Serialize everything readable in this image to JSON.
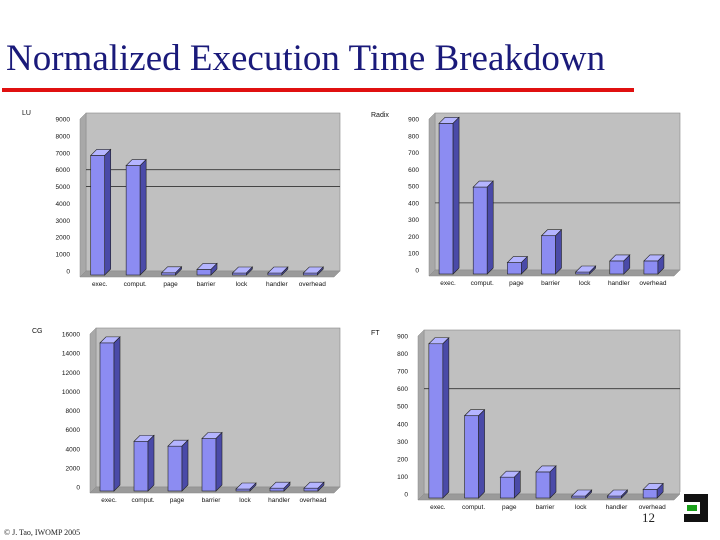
{
  "slide": {
    "title": "Normalized Execution Time Breakdown",
    "footer": "© J. Tao, IWOMP 2005",
    "page_number": "12"
  },
  "colors": {
    "title": "#1a1a7a",
    "rule": "#e01010",
    "bar_front": "#8c8cf2",
    "bar_top": "#b4b4ff",
    "bar_side": "#4a4aa8",
    "plot_bg": "#c0c0c0"
  },
  "chart_data": [
    {
      "type": "bar",
      "title": "LU",
      "categories": [
        "exec.",
        "comput.",
        "page",
        "barrier",
        "lock",
        "handler",
        "overhead"
      ],
      "values": [
        7200,
        6600,
        250,
        450,
        70,
        120,
        150
      ],
      "ylim": [
        0,
        9000
      ],
      "yticks": [
        "0",
        "1000",
        "2000",
        "3000",
        "4000",
        "5000",
        "6000",
        "7000",
        "8000",
        "9000"
      ],
      "grid_values": [
        5000,
        6000
      ]
    },
    {
      "type": "bar",
      "title": "Radix",
      "categories": [
        "exec.",
        "comput.",
        "page",
        "barrier",
        "lock",
        "handler",
        "overhead"
      ],
      "values": [
        910,
        530,
        80,
        240,
        20,
        90,
        90
      ],
      "ylim": [
        0,
        900
      ],
      "yticks": [
        "0",
        "100",
        "200",
        "300",
        "400",
        "500",
        "600",
        "700",
        "800",
        "900"
      ],
      "grid_values": [
        400
      ]
    },
    {
      "type": "bar",
      "title": "CG",
      "categories": [
        "exec.",
        "comput.",
        "page",
        "barrier",
        "lock",
        "handler",
        "overhead"
      ],
      "values": [
        15700,
        5400,
        4900,
        5700,
        60,
        500,
        500
      ],
      "ylim": [
        0,
        16000
      ],
      "yticks": [
        "0",
        "2000",
        "4000",
        "6000",
        "8000",
        "10000",
        "12000",
        "14000",
        "16000"
      ],
      "grid_values": []
    },
    {
      "type": "bar",
      "title": "FT",
      "categories": [
        "exec.",
        "comput.",
        "page",
        "barrier",
        "lock",
        "handler",
        "overhead"
      ],
      "values": [
        890,
        480,
        130,
        160,
        10,
        10,
        60
      ],
      "ylim": [
        0,
        900
      ],
      "yticks": [
        "0",
        "100",
        "200",
        "300",
        "400",
        "500",
        "600",
        "700",
        "800",
        "900"
      ],
      "grid_values": [
        600
      ]
    }
  ]
}
